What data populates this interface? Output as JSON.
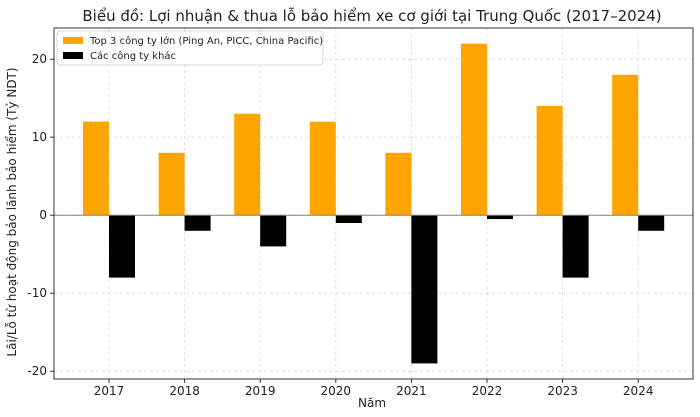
{
  "chart_data": {
    "type": "bar",
    "title": "Biểu đồ: Lợi nhuận & thua lỗ bảo hiểm xe cơ giới tại Trung Quốc (2017–2024)",
    "xlabel": "Năm",
    "ylabel": "Lãi/Lỗ từ hoạt động bảo lãnh bảo hiểm (Tỷ NDT)",
    "categories": [
      "2017",
      "2018",
      "2019",
      "2020",
      "2021",
      "2022",
      "2023",
      "2024"
    ],
    "series": [
      {
        "name": "Top 3 công ty lớn (Ping An, PICC, China Pacific)",
        "color": "#FFA500",
        "values": [
          12,
          8,
          13,
          12,
          8,
          22,
          14,
          18
        ]
      },
      {
        "name": "Các công ty khác",
        "color": "#000000",
        "values": [
          -8,
          -2,
          -4,
          -1,
          -19,
          -0.5,
          -8,
          -2
        ]
      }
    ],
    "ylim": [
      -21,
      24
    ],
    "yticks": [
      -20,
      -10,
      0,
      10,
      20
    ],
    "grid": true,
    "legend_position": "top-left"
  }
}
